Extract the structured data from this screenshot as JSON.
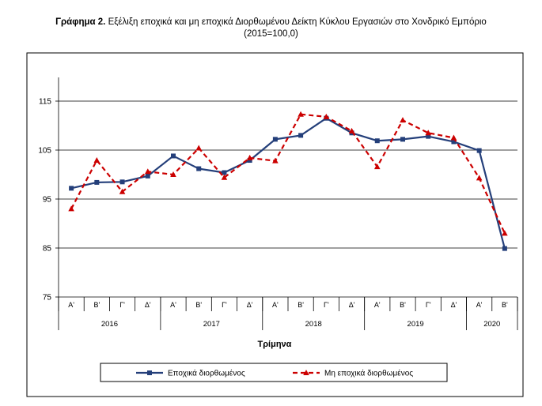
{
  "chart_data": {
    "type": "line",
    "title_prefix": "Γράφημα 2.",
    "title": "Εξέλιξη εποχικά και μη εποχικά Διορθωμένου Δείκτη Κύκλου Εργασιών στο Χονδρικό Εμπόριο",
    "subtitle": "(2015=100,0)",
    "xlabel": "Τρίμηνα",
    "ylabel": "",
    "ylim": [
      75,
      115
    ],
    "yticks": [
      75,
      85,
      95,
      105,
      115
    ],
    "grid": true,
    "legend_position": "bottom",
    "quarters": [
      "Α'",
      "Β'",
      "Γ'",
      "Δ'",
      "Α'",
      "Β'",
      "Γ'",
      "Δ'",
      "Α'",
      "Β'",
      "Γ'",
      "Δ'",
      "Α'",
      "Β'",
      "Γ'",
      "Δ'",
      "Α'",
      "Β'"
    ],
    "years": [
      {
        "label": "2016",
        "count": 4
      },
      {
        "label": "2017",
        "count": 4
      },
      {
        "label": "2018",
        "count": 4
      },
      {
        "label": "2019",
        "count": 4
      },
      {
        "label": "2020",
        "count": 2
      }
    ],
    "series": [
      {
        "name": "Εποχικά διορθωμένος",
        "color": "#243f7a",
        "style": "solid",
        "marker": "square",
        "values": [
          97.2,
          98.4,
          98.5,
          99.7,
          103.8,
          101.2,
          100.4,
          102.9,
          107.2,
          108.0,
          111.5,
          108.5,
          106.9,
          107.2,
          107.8,
          106.7,
          104.9,
          84.9
        ]
      },
      {
        "name": "Μη εποχικά διορθωμένος",
        "color": "#cc0000",
        "style": "dashed",
        "marker": "triangle",
        "values": [
          93.0,
          102.9,
          96.5,
          100.6,
          100.0,
          105.4,
          99.4,
          103.4,
          102.8,
          112.3,
          111.8,
          108.9,
          101.6,
          111.1,
          108.5,
          107.5,
          99.3,
          88.0
        ]
      }
    ]
  }
}
